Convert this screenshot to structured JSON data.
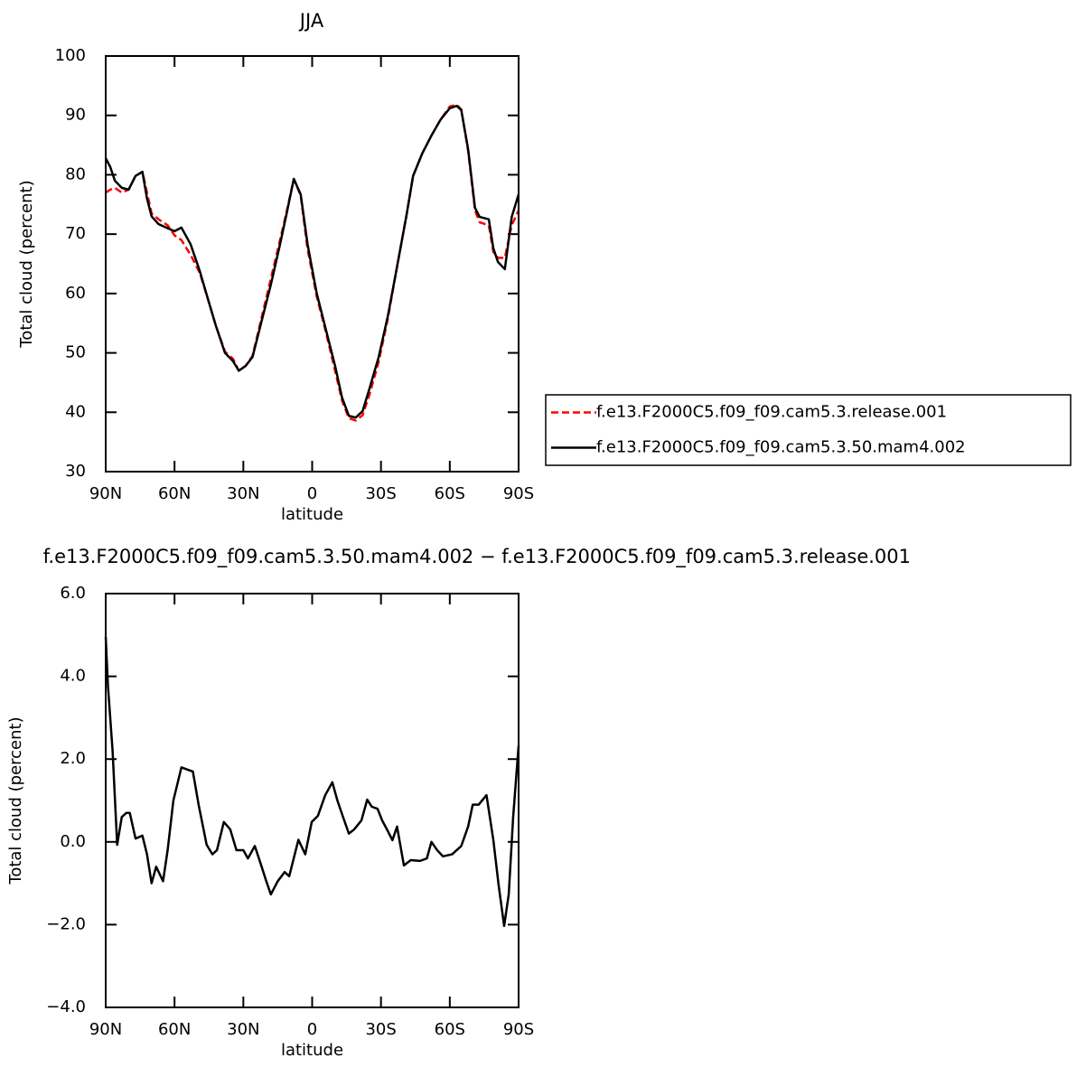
{
  "chart_data": [
    {
      "type": "line",
      "title": "JJA",
      "xlabel": "latitude",
      "ylabel": "Total cloud (percent)",
      "xlim": [
        90,
        -90
      ],
      "xticks": [
        {
          "value": 90,
          "label": "90N"
        },
        {
          "value": 60,
          "label": "60N"
        },
        {
          "value": 30,
          "label": "30N"
        },
        {
          "value": 0,
          "label": "0"
        },
        {
          "value": -30,
          "label": "30S"
        },
        {
          "value": -60,
          "label": "60S"
        },
        {
          "value": -90,
          "label": "90S"
        }
      ],
      "ylim": [
        30,
        100
      ],
      "yticks": [
        30,
        40,
        50,
        60,
        70,
        80,
        90,
        100
      ],
      "legend": "outside-right",
      "x": [
        90,
        88,
        86,
        83,
        80,
        77,
        74,
        72,
        70,
        67,
        63,
        60,
        57,
        53,
        49,
        45,
        42,
        38,
        34.5,
        32,
        29,
        26,
        22,
        18,
        14,
        11,
        8,
        5,
        2,
        -2,
        -6,
        -10,
        -13,
        -16,
        -19,
        -22,
        -25,
        -29,
        -33,
        -37,
        -41,
        -44,
        -48,
        -52,
        -56,
        -60,
        -63,
        -65,
        -68,
        -71,
        -73,
        -77,
        -79,
        -81,
        -84,
        -87,
        -90
      ],
      "series": [
        {
          "name": "f.e13.F2000C5.f09_f09.cam5.3.release.001",
          "color": "#ff0000",
          "line_style": "dashed",
          "values": [
            77,
            77.5,
            77.8,
            77,
            77.5,
            79.8,
            80.5,
            77,
            73.5,
            72.5,
            71.5,
            69.8,
            69,
            66.5,
            63.5,
            58.5,
            54.6,
            50.2,
            49,
            47,
            47.8,
            49.5,
            56,
            62.5,
            69,
            74,
            79.3,
            76.5,
            67.5,
            59.5,
            53.5,
            47,
            42,
            39,
            38.6,
            39.5,
            43,
            48.5,
            55.8,
            64.5,
            72.9,
            79.8,
            83.6,
            86.6,
            89.3,
            91.5,
            91.8,
            91,
            84,
            74,
            72,
            71.5,
            67,
            66,
            66,
            71.5,
            74
          ]
        },
        {
          "name": "f.e13.F2000C5.f09_f09.cam5.3.50.mam4.002",
          "color": "#000000",
          "line_style": "solid",
          "values": [
            82.8,
            81.3,
            79,
            77.8,
            77.5,
            79.8,
            80.5,
            76,
            73,
            71.7,
            71,
            70.5,
            71.1,
            68.3,
            63.8,
            58.5,
            54.6,
            50,
            48.6,
            47,
            47.8,
            49.3,
            55.4,
            61.5,
            68.3,
            73.7,
            79.3,
            76.7,
            68.3,
            60,
            53.9,
            47.8,
            42.5,
            39.4,
            39.1,
            40.2,
            44,
            49.3,
            56.2,
            64.5,
            72.9,
            79.8,
            83.6,
            86.6,
            89.3,
            91.2,
            91.6,
            90.9,
            84.3,
            74.4,
            72.9,
            72.5,
            67.6,
            65.3,
            64.1,
            72.9,
            76.7
          ]
        }
      ]
    },
    {
      "type": "line",
      "title": "f.e13.F2000C5.f09_f09.cam5.3.50.mam4.002 − f.e13.F2000C5.f09_f09.cam5.3.release.001",
      "xlabel": "latitude",
      "ylabel": "Total cloud (percent)",
      "xlim": [
        90,
        -90
      ],
      "xticks": [
        {
          "value": 90,
          "label": "90N"
        },
        {
          "value": 60,
          "label": "60N"
        },
        {
          "value": 30,
          "label": "30N"
        },
        {
          "value": 0,
          "label": "0"
        },
        {
          "value": -30,
          "label": "30S"
        },
        {
          "value": -60,
          "label": "60S"
        },
        {
          "value": -90,
          "label": "90S"
        }
      ],
      "ylim": [
        -4,
        6
      ],
      "yticks": [
        {
          "value": -4,
          "label": "−4.0"
        },
        {
          "value": -2,
          "label": "−2.0"
        },
        {
          "value": 0,
          "label": "0.0"
        },
        {
          "value": 2,
          "label": "2.0"
        },
        {
          "value": 4,
          "label": "4.0"
        },
        {
          "value": 6,
          "label": "6.0"
        }
      ],
      "x": [
        90,
        89,
        87,
        85,
        83,
        81,
        79.5,
        77,
        74,
        72,
        70,
        68,
        65,
        63,
        60.5,
        57,
        54.5,
        52,
        49.5,
        46,
        43.5,
        41.5,
        38.5,
        35.7,
        33,
        30,
        28,
        25,
        22.6,
        20,
        18,
        15,
        12,
        10,
        6,
        3,
        0.2,
        -2.5,
        -5.7,
        -8.8,
        -11,
        -13.6,
        -16,
        -18.3,
        -21.5,
        -24,
        -26,
        -28.5,
        -30.5,
        -33,
        -35,
        -37,
        -40,
        -43,
        -47,
        -50,
        -52,
        -54.5,
        -57,
        -61,
        -65,
        -68,
        -70,
        -72.6,
        -76,
        -79,
        -81.3,
        -83.7,
        -85.7,
        -87.6,
        -90
      ],
      "series": [
        {
          "color": "#000000",
          "line_style": "solid",
          "values": [
            4.95,
            3.75,
            2.2,
            -0.07,
            0.6,
            0.7,
            0.7,
            0.08,
            0.15,
            -0.3,
            -1.0,
            -0.6,
            -0.95,
            -0.2,
            1.0,
            1.8,
            1.75,
            1.7,
            0.9,
            -0.07,
            -0.3,
            -0.2,
            0.48,
            0.3,
            -0.2,
            -0.2,
            -0.4,
            -0.1,
            -0.5,
            -0.95,
            -1.27,
            -0.95,
            -0.73,
            -0.83,
            0.05,
            -0.3,
            0.48,
            0.63,
            1.13,
            1.44,
            1.0,
            0.58,
            0.2,
            0.3,
            0.52,
            1.02,
            0.85,
            0.8,
            0.52,
            0.26,
            0.04,
            0.37,
            -0.57,
            -0.44,
            -0.46,
            -0.4,
            0,
            -0.2,
            -0.35,
            -0.3,
            -0.1,
            0.37,
            0.9,
            0.9,
            1.13,
            0.04,
            -1.05,
            -2.03,
            -1.27,
            0.58,
            2.33
          ]
        }
      ]
    }
  ]
}
